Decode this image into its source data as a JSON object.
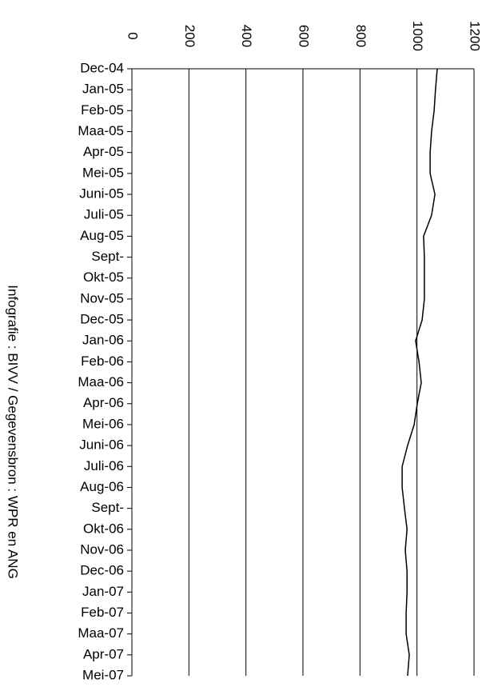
{
  "chart_data": {
    "type": "line",
    "orientation": "horizontal",
    "credit": "Infografie : BIVV / Gegevensbron : WPR en ANG",
    "categories": [
      "Dec-04",
      "Jan-05",
      "Feb-05",
      "Maa-05",
      "Apr-05",
      "Mei-05",
      "Juni-05",
      "Juli-05",
      "Aug-05",
      "Sept-",
      "Okt-05",
      "Nov-05",
      "Dec-05",
      "Jan-06",
      "Feb-06",
      "Maa-06",
      "Apr-06",
      "Mei-06",
      "Juni-06",
      "Juli-06",
      "Aug-06",
      "Sept-",
      "Okt-06",
      "Nov-06",
      "Dec-06",
      "Jan-07",
      "Feb-07",
      "Maa-07",
      "Apr-07",
      "Mei-07"
    ],
    "values": [
      1071,
      1065,
      1060,
      1051,
      1046,
      1046,
      1063,
      1051,
      1023,
      1026,
      1026,
      1026,
      1018,
      995,
      1007,
      1015,
      1001,
      990,
      967,
      948,
      948,
      956,
      965,
      959,
      965,
      965,
      962,
      962,
      973,
      967
    ],
    "color": "#000000",
    "ylim": [
      0,
      1200
    ],
    "yticks": [
      0,
      200,
      400,
      600,
      800,
      1000,
      1200
    ],
    "grid": true
  }
}
